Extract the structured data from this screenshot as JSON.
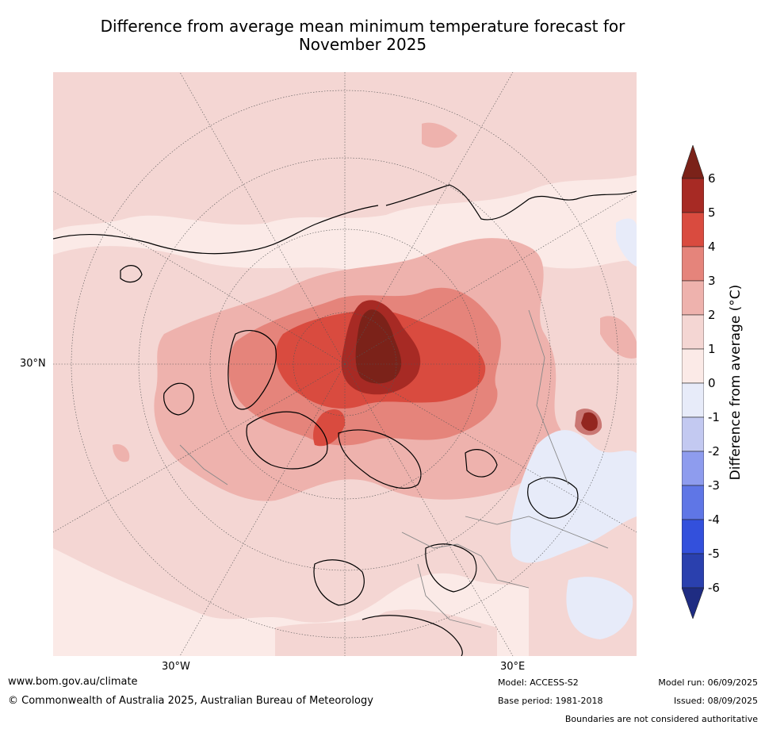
{
  "title_line1": "Difference from average mean minimum temperature forecast for",
  "title_line2": "November 2025",
  "map": {
    "projection": "north-polar-stereographic",
    "lat_labels": [
      "30°N"
    ],
    "lon_labels": [
      "30°W",
      "30°E"
    ]
  },
  "colorbar": {
    "label": "Difference from average (°C)",
    "ticks": [
      "6",
      "5",
      "4",
      "3",
      "2",
      "1",
      "0",
      "-1",
      "-2",
      "-3",
      "-4",
      "-5",
      "-6"
    ],
    "bins": [
      {
        "range": "5 to 6",
        "color": "#a72a24"
      },
      {
        "range": "4 to 5",
        "color": "#d94b3f"
      },
      {
        "range": "3 to 4",
        "color": "#e5847b"
      },
      {
        "range": "2 to 3",
        "color": "#eeb2ad"
      },
      {
        "range": "1 to 2",
        "color": "#f4d6d3"
      },
      {
        "range": "0 to 1",
        "color": "#fbeae7"
      },
      {
        "range": "-1 to 0",
        "color": "#e7ebf9"
      },
      {
        "range": "-2 to -1",
        "color": "#c3c9f1"
      },
      {
        "range": "-3 to -2",
        "color": "#8e9cee"
      },
      {
        "range": "-4 to -3",
        "color": "#5f76e6"
      },
      {
        "range": "-5 to -4",
        "color": "#3350dc"
      },
      {
        "range": "-6 to -5",
        "color": "#2a40ae"
      }
    ],
    "over_color": "#7b2219",
    "under_color": "#1f2c82"
  },
  "footer": {
    "url": "www.bom.gov.au/climate",
    "copyright": "© Commonwealth of Australia 2025, Australian Bureau of Meteorology",
    "model": "Model: ACCESS-S2",
    "base_period": "Base period: 1981-2018",
    "model_run": "Model run: 06/09/2025",
    "issued": "Issued: 08/09/2025",
    "disclaimer": "Boundaries are not considered authoritative"
  }
}
